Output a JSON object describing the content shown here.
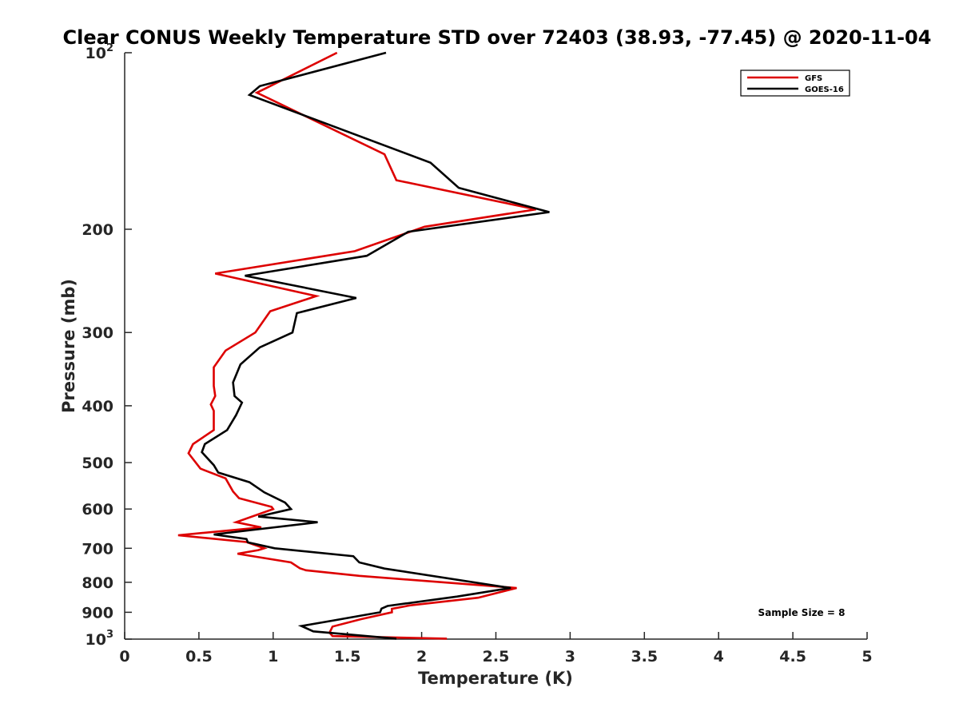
{
  "chart_data": {
    "type": "line",
    "title": "Clear CONUS Weekly Temperature STD over 72403 (38.93, -77.45) @ 2020-11-04",
    "xlabel": "Temperature (K)",
    "ylabel": "Pressure (mb)",
    "xlim": [
      0,
      5
    ],
    "ylim": [
      100,
      1000
    ],
    "yscale": "log",
    "yreversed": true,
    "x_ticks": [
      "0",
      "0.5",
      "1",
      "1.5",
      "2",
      "2.5",
      "3",
      "3.5",
      "4",
      "4.5",
      "5"
    ],
    "y_ticks": [
      {
        "value": 100,
        "base": "10",
        "exp": "2"
      },
      {
        "value": 200,
        "label": "200"
      },
      {
        "value": 300,
        "label": "300"
      },
      {
        "value": 400,
        "label": "400"
      },
      {
        "value": 500,
        "label": "500"
      },
      {
        "value": 600,
        "label": "600"
      },
      {
        "value": 700,
        "label": "700"
      },
      {
        "value": 800,
        "label": "800"
      },
      {
        "value": 900,
        "label": "900"
      },
      {
        "value": 1000,
        "base": "10",
        "exp": "3"
      }
    ],
    "grid": false,
    "legend": "top-right",
    "annotation": "Sample Size = 8",
    "series": [
      {
        "name": "GFS",
        "color": "#dd0000",
        "points": [
          [
            1.43,
            100
          ],
          [
            0.95,
            115
          ],
          [
            0.89,
            117
          ],
          [
            1.75,
            149
          ],
          [
            1.83,
            165
          ],
          [
            2.77,
            185
          ],
          [
            2.02,
            198
          ],
          [
            1.55,
            218
          ],
          [
            0.61,
            238
          ],
          [
            1.29,
            260
          ],
          [
            0.98,
            276
          ],
          [
            0.88,
            300
          ],
          [
            0.68,
            322
          ],
          [
            0.6,
            344
          ],
          [
            0.6,
            370
          ],
          [
            0.61,
            385
          ],
          [
            0.58,
            398
          ],
          [
            0.6,
            408
          ],
          [
            0.6,
            440
          ],
          [
            0.46,
            465
          ],
          [
            0.43,
            482
          ],
          [
            0.51,
            512
          ],
          [
            0.68,
            532
          ],
          [
            0.73,
            560
          ],
          [
            0.77,
            575
          ],
          [
            0.99,
            595
          ],
          [
            1.0,
            600
          ],
          [
            0.75,
            632
          ],
          [
            0.92,
            645
          ],
          [
            0.36,
            665
          ],
          [
            0.82,
            683
          ],
          [
            0.94,
            700
          ],
          [
            0.9,
            705
          ],
          [
            0.76,
            715
          ],
          [
            1.12,
            740
          ],
          [
            1.18,
            757
          ],
          [
            1.22,
            763
          ],
          [
            1.58,
            780
          ],
          [
            2.64,
            818
          ],
          [
            2.38,
            850
          ],
          [
            1.92,
            876
          ],
          [
            1.8,
            888
          ],
          [
            1.8,
            900
          ],
          [
            1.59,
            925
          ],
          [
            1.4,
            952
          ],
          [
            1.38,
            975
          ],
          [
            1.4,
            988
          ],
          [
            2.17,
            998
          ]
        ]
      },
      {
        "name": "GOES-16",
        "color": "#000000",
        "points": [
          [
            1.76,
            100
          ],
          [
            0.91,
            114
          ],
          [
            0.84,
            118
          ],
          [
            2.06,
            154
          ],
          [
            2.25,
            170
          ],
          [
            2.86,
            187
          ],
          [
            1.91,
            202
          ],
          [
            1.63,
            222
          ],
          [
            0.81,
            240
          ],
          [
            1.56,
            262
          ],
          [
            1.16,
            278
          ],
          [
            1.13,
            300
          ],
          [
            0.91,
            318
          ],
          [
            0.78,
            340
          ],
          [
            0.73,
            365
          ],
          [
            0.74,
            385
          ],
          [
            0.79,
            395
          ],
          [
            0.75,
            415
          ],
          [
            0.69,
            440
          ],
          [
            0.54,
            465
          ],
          [
            0.52,
            480
          ],
          [
            0.6,
            505
          ],
          [
            0.63,
            520
          ],
          [
            0.84,
            540
          ],
          [
            0.94,
            562
          ],
          [
            1.08,
            585
          ],
          [
            1.12,
            600
          ],
          [
            0.9,
            618
          ],
          [
            1.3,
            632
          ],
          [
            0.6,
            663
          ],
          [
            0.82,
            675
          ],
          [
            0.83,
            684
          ],
          [
            1.01,
            700
          ],
          [
            1.54,
            722
          ],
          [
            1.58,
            740
          ],
          [
            1.75,
            758
          ],
          [
            2.6,
            818
          ],
          [
            2.24,
            846
          ],
          [
            1.77,
            878
          ],
          [
            1.73,
            887
          ],
          [
            1.72,
            900
          ],
          [
            1.4,
            930
          ],
          [
            1.19,
            950
          ],
          [
            1.27,
            970
          ],
          [
            1.83,
            998
          ]
        ]
      }
    ]
  }
}
